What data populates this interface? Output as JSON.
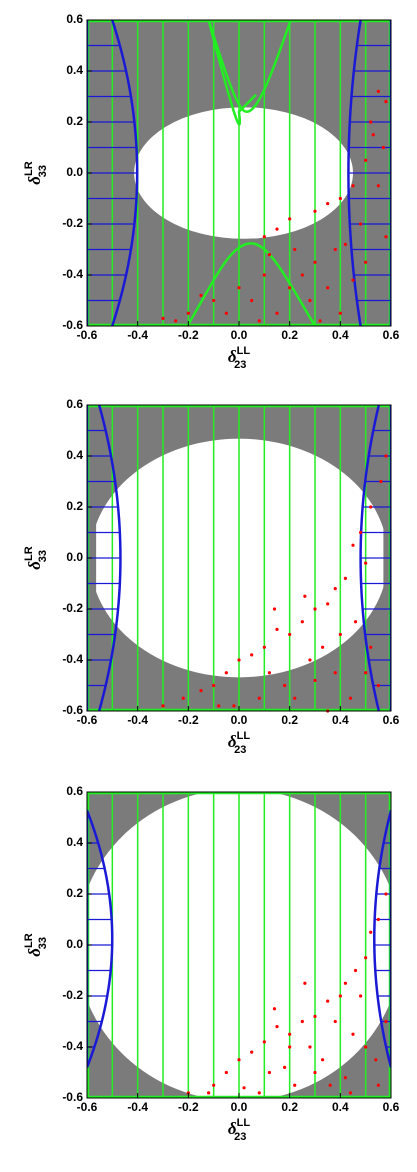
{
  "chart_data": [
    {
      "type": "scatter",
      "x_label": {
        "symbol": "δ",
        "sub": "23",
        "sup": "LL"
      },
      "y_label": {
        "symbol": "δ",
        "sub": "33",
        "sup": "LR"
      },
      "xlim": [
        -0.6,
        0.6
      ],
      "ylim": [
        -0.6,
        0.6
      ],
      "xticks": [
        -0.6,
        -0.4,
        -0.2,
        {
          "value": 0,
          "label": "0.0"
        },
        0.2,
        0.4,
        0.6
      ],
      "yticks": [
        -0.6,
        -0.4,
        -0.2,
        {
          "value": 0,
          "label": "0.0"
        },
        0.2,
        0.4,
        0.6
      ],
      "series": [
        {
          "color": "#ff0000",
          "x": [
            0.55,
            0.58,
            0.52,
            0.57,
            0.5,
            0.45,
            0.4,
            0.35,
            0.3,
            0.2,
            0.15,
            0.1,
            0.48,
            0.42,
            0.38,
            0.3,
            0.25,
            0.2,
            0.1,
            0.05,
            0.0,
            -0.05,
            -0.1,
            -0.15,
            -0.2,
            0.15,
            0.28,
            0.35,
            0.45,
            0.5,
            0.55,
            0.53,
            0.22,
            0.12,
            -0.25,
            -0.3,
            0.4,
            0.32,
            0.08,
            0.58
          ],
          "y": [
            0.32,
            0.28,
            0.2,
            0.1,
            0.05,
            -0.05,
            -0.1,
            -0.12,
            -0.15,
            -0.18,
            -0.22,
            -0.25,
            -0.2,
            -0.28,
            -0.3,
            -0.35,
            -0.4,
            -0.45,
            -0.4,
            -0.5,
            -0.45,
            -0.55,
            -0.5,
            -0.48,
            -0.55,
            -0.55,
            -0.5,
            -0.45,
            -0.42,
            -0.35,
            -0.05,
            0.15,
            -0.3,
            -0.32,
            -0.58,
            -0.57,
            -0.55,
            -0.58,
            -0.58,
            -0.25
          ]
        }
      ]
    },
    {
      "type": "scatter",
      "x_label": {
        "symbol": "δ",
        "sub": "23",
        "sup": "LL"
      },
      "y_label": {
        "symbol": "δ",
        "sub": "33",
        "sup": "LR"
      },
      "xlim": [
        -0.6,
        0.6
      ],
      "ylim": [
        -0.6,
        0.6
      ],
      "xticks": [
        -0.6,
        -0.4,
        -0.2,
        {
          "value": 0,
          "label": "0.0"
        },
        0.2,
        0.4,
        0.6
      ],
      "yticks": [
        -0.6,
        -0.4,
        -0.2,
        {
          "value": 0,
          "label": "0.0"
        },
        0.2,
        0.4,
        0.6
      ],
      "series": [
        {
          "color": "#ff0000",
          "x": [
            0.58,
            0.56,
            0.52,
            0.48,
            0.45,
            0.5,
            0.42,
            0.38,
            0.35,
            0.3,
            0.25,
            0.2,
            0.15,
            0.1,
            0.05,
            0.0,
            -0.05,
            -0.1,
            -0.15,
            -0.22,
            -0.3,
            0.12,
            0.18,
            0.28,
            0.33,
            0.4,
            0.46,
            0.52,
            0.55,
            0.22,
            0.08,
            -0.02,
            0.3,
            0.38,
            0.44,
            0.5,
            0.14,
            -0.08,
            0.26,
            0.35
          ],
          "y": [
            0.4,
            0.3,
            0.2,
            0.1,
            0.05,
            -0.02,
            -0.08,
            -0.12,
            -0.18,
            -0.2,
            -0.25,
            -0.3,
            -0.28,
            -0.35,
            -0.38,
            -0.4,
            -0.45,
            -0.5,
            -0.52,
            -0.55,
            -0.58,
            -0.45,
            -0.5,
            -0.4,
            -0.35,
            -0.3,
            -0.25,
            -0.35,
            -0.5,
            -0.55,
            -0.55,
            -0.58,
            -0.48,
            -0.45,
            -0.55,
            -0.45,
            -0.2,
            -0.58,
            -0.15,
            -0.6
          ]
        }
      ]
    },
    {
      "type": "scatter",
      "x_label": {
        "symbol": "δ",
        "sub": "23",
        "sup": "LL"
      },
      "y_label": {
        "symbol": "δ",
        "sub": "33",
        "sup": "LR"
      },
      "xlim": [
        -0.6,
        0.6
      ],
      "ylim": [
        -0.6,
        0.6
      ],
      "xticks": [
        -0.6,
        -0.4,
        -0.2,
        {
          "value": 0,
          "label": "0.0"
        },
        0.2,
        0.4,
        0.6
      ],
      "yticks": [
        -0.6,
        -0.4,
        -0.2,
        {
          "value": 0,
          "label": "0.0"
        },
        0.2,
        0.4,
        0.6
      ],
      "series": [
        {
          "color": "#ff0000",
          "x": [
            0.58,
            0.55,
            0.52,
            0.5,
            0.46,
            0.42,
            0.4,
            0.35,
            0.3,
            0.25,
            0.2,
            0.15,
            0.1,
            0.05,
            0.0,
            -0.05,
            -0.1,
            -0.2,
            0.12,
            0.18,
            0.28,
            0.33,
            0.38,
            0.45,
            0.5,
            0.55,
            0.22,
            0.08,
            0.3,
            0.42,
            0.48,
            0.58,
            0.14,
            0.26,
            0.36,
            0.02,
            0.54,
            0.44,
            -0.12,
            0.2
          ],
          "y": [
            0.2,
            0.1,
            0.05,
            -0.05,
            -0.1,
            -0.15,
            -0.2,
            -0.22,
            -0.28,
            -0.3,
            -0.35,
            -0.32,
            -0.38,
            -0.42,
            -0.45,
            -0.5,
            -0.55,
            -0.58,
            -0.5,
            -0.48,
            -0.4,
            -0.45,
            -0.3,
            -0.35,
            -0.4,
            -0.55,
            -0.55,
            -0.58,
            -0.5,
            -0.52,
            -0.2,
            -0.3,
            -0.25,
            -0.15,
            -0.55,
            -0.56,
            -0.45,
            -0.58,
            -0.58,
            -0.4
          ]
        }
      ]
    }
  ]
}
